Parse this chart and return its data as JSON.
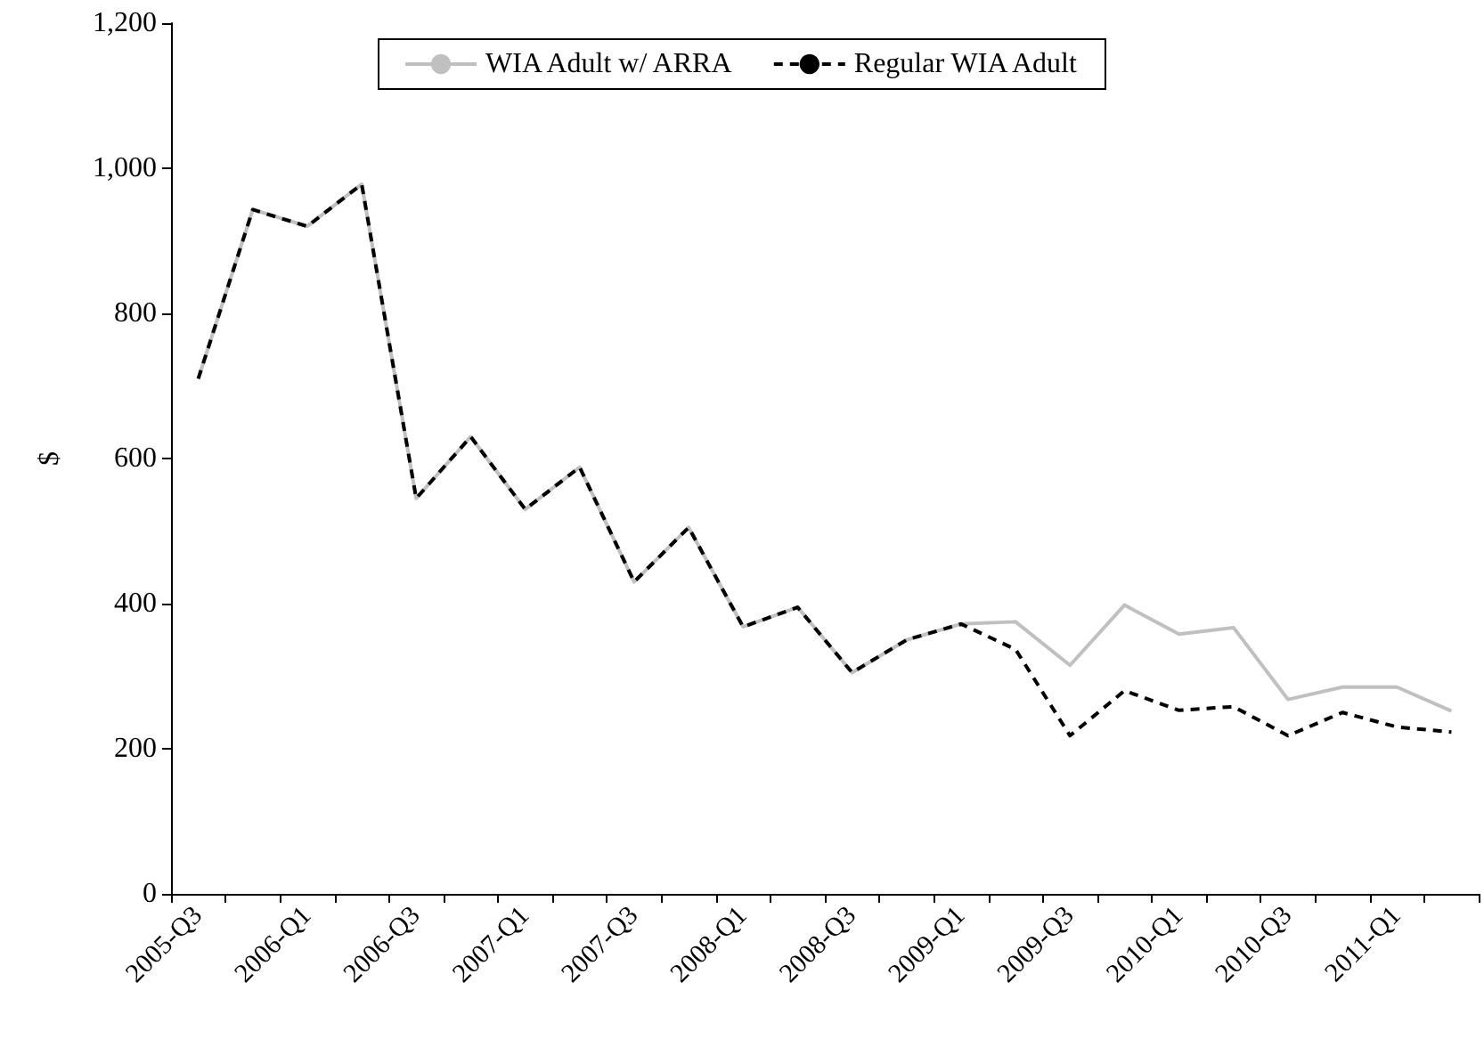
{
  "chart_data": {
    "type": "line",
    "ylabel": "$",
    "categories": [
      "2005-Q3",
      null,
      "2006-Q1",
      null,
      "2006-Q3",
      null,
      "2007-Q1",
      null,
      "2007-Q3",
      null,
      "2008-Q1",
      null,
      "2008-Q3",
      null,
      "2009-Q1",
      null,
      "2009-Q3",
      null,
      "2010-Q1",
      null,
      "2010-Q3",
      null,
      "2011-Q1",
      null
    ],
    "series": [
      {
        "name": "WIA Adult w/ ARRA",
        "color": "#c0c0c0",
        "line_style": "solid",
        "values": [
          710,
          943,
          920,
          978,
          545,
          630,
          530,
          588,
          430,
          505,
          368,
          395,
          305,
          350,
          372,
          375,
          315,
          398,
          358,
          367,
          268,
          285,
          285,
          252
        ]
      },
      {
        "name": "Regular WIA Adult",
        "color": "#000000",
        "line_style": "dashed",
        "values": [
          710,
          943,
          920,
          978,
          545,
          630,
          530,
          588,
          430,
          505,
          368,
          395,
          305,
          350,
          372,
          337,
          218,
          280,
          253,
          258,
          218,
          250,
          230,
          223
        ]
      }
    ],
    "ylim": [
      0,
      1200
    ],
    "yticks": [
      0,
      200,
      400,
      600,
      800,
      {
        "value": 1000,
        "label": "1,000"
      },
      {
        "value": 1200,
        "label": "1,200"
      }
    ],
    "grid": false,
    "legend": "top",
    "marker": "none"
  }
}
